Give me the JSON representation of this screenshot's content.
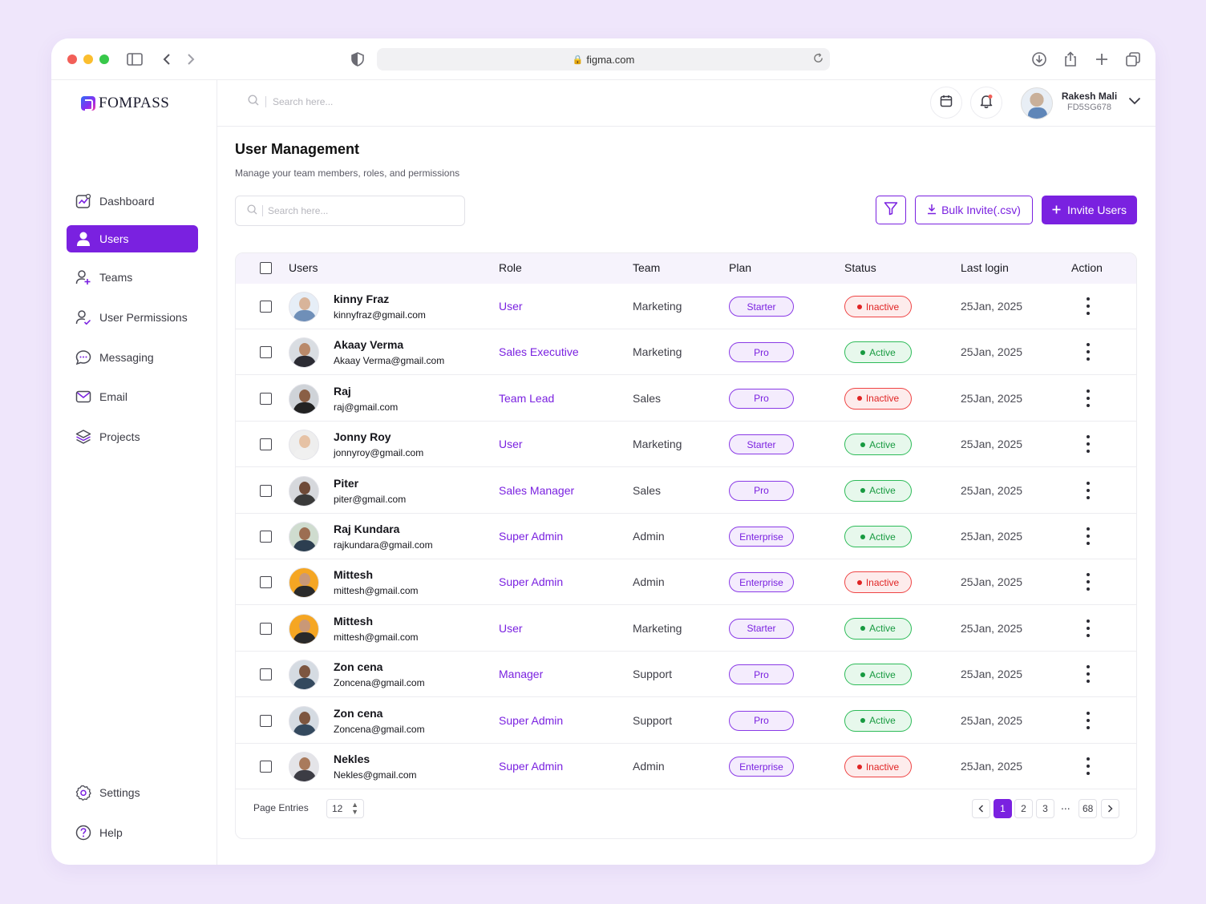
{
  "browser": {
    "url": "figma.com"
  },
  "brand": {
    "name": "FOMPASS",
    "accent": "#7a21e0"
  },
  "sidebar": {
    "items": [
      {
        "label": "Dashboard",
        "icon": "chart-icon"
      },
      {
        "label": "Users",
        "icon": "user-icon",
        "active": true
      },
      {
        "label": "Teams",
        "icon": "user-add-icon"
      },
      {
        "label": "User Permissions",
        "icon": "user-check-icon"
      },
      {
        "label": "Messaging",
        "icon": "chat-icon"
      },
      {
        "label": "Email",
        "icon": "mail-icon"
      },
      {
        "label": "Projects",
        "icon": "layers-icon"
      }
    ],
    "bottom": [
      {
        "label": "Settings",
        "icon": "gear-icon"
      },
      {
        "label": "Help",
        "icon": "help-icon"
      }
    ]
  },
  "topbar": {
    "search_placeholder": "Search here...",
    "user": {
      "name": "Rakesh Mali",
      "code": "FD5SG678"
    }
  },
  "page": {
    "title": "User Management",
    "subtitle": "Manage your team members, roles, and permissions",
    "search_placeholder": "Search here...",
    "bulk_label": "Bulk Invite(.csv)",
    "invite_label": "Invite Users"
  },
  "table": {
    "columns": [
      "Users",
      "Role",
      "Team",
      "Plan",
      "Status",
      "Last login",
      "Action"
    ],
    "rows": [
      {
        "name": "kinny Fraz",
        "email": "kinnyfraz@gmail.com",
        "role": "User",
        "team": "Marketing",
        "plan": "Starter",
        "status": "Inactive",
        "last_login": "25Jan, 2025"
      },
      {
        "name": "Akaay Verma",
        "email": "Akaay Verma@gmail.com",
        "role": "Sales Executive",
        "team": "Marketing",
        "plan": "Pro",
        "status": "Active",
        "last_login": "25Jan, 2025"
      },
      {
        "name": "Raj",
        "email": "raj@gmail.com",
        "role": "Team Lead",
        "team": "Sales",
        "plan": "Pro",
        "status": "Inactive",
        "last_login": "25Jan, 2025"
      },
      {
        "name": "Jonny Roy",
        "email": "jonnyroy@gmail.com",
        "role": "User",
        "team": "Marketing",
        "plan": "Starter",
        "status": "Active",
        "last_login": "25Jan, 2025"
      },
      {
        "name": "Piter",
        "email": "piter@gmail.com",
        "role": "Sales Manager",
        "team": "Sales",
        "plan": "Pro",
        "status": "Active",
        "last_login": "25Jan, 2025"
      },
      {
        "name": "Raj Kundara",
        "email": "rajkundara@gmail.com",
        "role": "Super Admin",
        "team": "Admin",
        "plan": "Enterprise",
        "status": "Active",
        "last_login": "25Jan, 2025"
      },
      {
        "name": "Mittesh",
        "email": "mittesh@gmail.com",
        "role": "Super Admin",
        "team": "Admin",
        "plan": "Enterprise",
        "status": "Inactive",
        "last_login": "25Jan, 2025"
      },
      {
        "name": "Mittesh",
        "email": "mittesh@gmail.com",
        "role": "User",
        "team": "Marketing",
        "plan": "Starter",
        "status": "Active",
        "last_login": "25Jan, 2025"
      },
      {
        "name": "Zon cena",
        "email": "Zoncena@gmail.com",
        "role": "Manager",
        "team": "Support",
        "plan": "Pro",
        "status": "Active",
        "last_login": "25Jan, 2025"
      },
      {
        "name": "Zon cena",
        "email": "Zoncena@gmail.com",
        "role": "Super Admin",
        "team": "Support",
        "plan": "Pro",
        "status": "Active",
        "last_login": "25Jan, 2025"
      },
      {
        "name": "Nekles",
        "email": "Nekles@gmail.com",
        "role": "Super Admin",
        "team": "Admin",
        "plan": "Enterprise",
        "status": "Inactive",
        "last_login": "25Jan, 2025"
      }
    ]
  },
  "pagination": {
    "entries_label": "Page Entries",
    "entries_value": "12",
    "pages": [
      "1",
      "2",
      "3"
    ],
    "ellipsis": "...",
    "last_page": "68",
    "current": "1"
  }
}
